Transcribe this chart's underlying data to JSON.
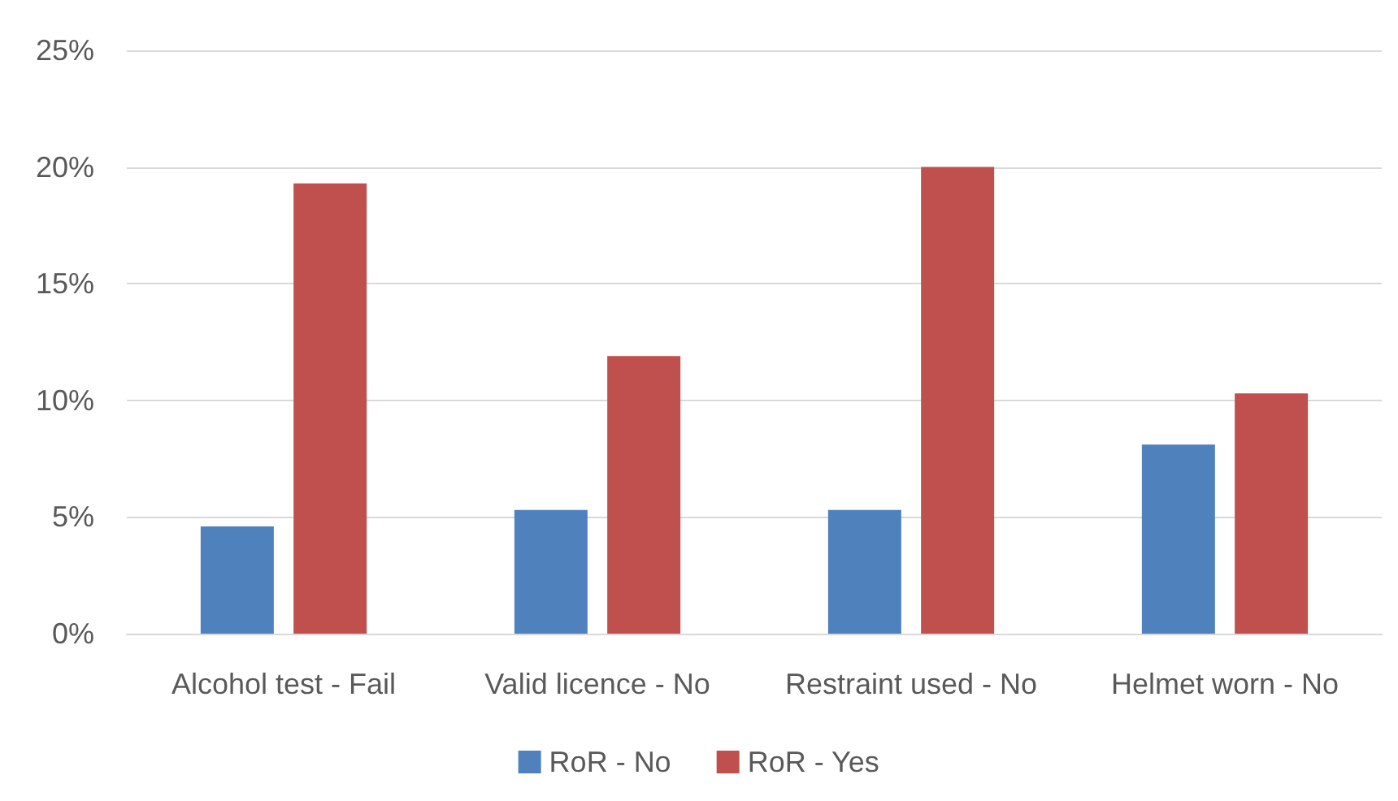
{
  "chart_data": {
    "type": "bar",
    "categories": [
      "Alcohol test - Fail",
      "Valid licence - No",
      "Restraint used - No",
      "Helmet worn - No"
    ],
    "series": [
      {
        "name": "RoR - No",
        "color": "#4f81bd",
        "values": [
          4.6,
          5.3,
          5.3,
          8.1
        ]
      },
      {
        "name": "RoR - Yes",
        "color": "#c0504d",
        "values": [
          19.3,
          11.9,
          20.0,
          10.3
        ]
      }
    ],
    "ylim": [
      0,
      25
    ],
    "yticks": [
      {
        "value": 0,
        "label": "0%"
      },
      {
        "value": 5,
        "label": "5%"
      },
      {
        "value": 10,
        "label": "10%"
      },
      {
        "value": 15,
        "label": "15%"
      },
      {
        "value": 20,
        "label": "20%"
      },
      {
        "value": 25,
        "label": "25%"
      }
    ],
    "grid": "y",
    "legend": "bottom"
  }
}
